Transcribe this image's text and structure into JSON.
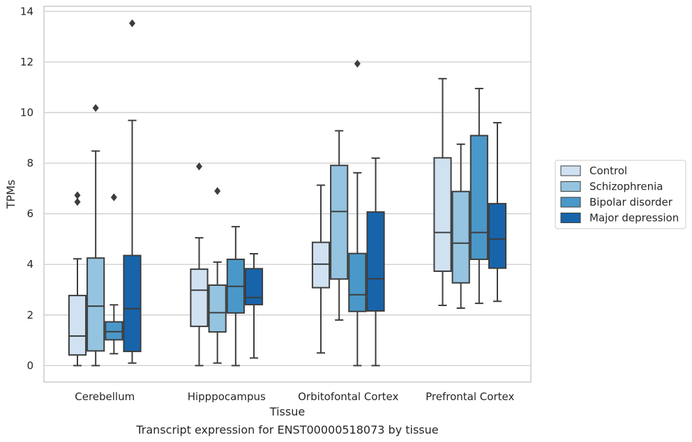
{
  "chart_data": {
    "type": "boxplot",
    "title": "Transcript expression for ENST00000518073 by tissue",
    "xlabel": "Tissue",
    "ylabel": "TPMs",
    "ylim": [
      -0.65,
      14.2
    ],
    "yticks": [
      0,
      2,
      4,
      6,
      8,
      10,
      12,
      14
    ],
    "grid": true,
    "legend_position": "right",
    "categories": [
      "Cerebellum",
      "Hipppocampus",
      "Orbitofontal Cortex",
      "Prefrontal Cortex"
    ],
    "series": [
      {
        "name": "Control",
        "color": "#d0e1f2",
        "boxes": [
          {
            "whisker_low": 0.0,
            "q1": 0.42,
            "median": 1.17,
            "q3": 2.77,
            "whisker_high": 4.22,
            "outliers": [
              6.47,
              6.73
            ]
          },
          {
            "whisker_low": 0.0,
            "q1": 1.55,
            "median": 2.98,
            "q3": 3.81,
            "whisker_high": 5.05,
            "outliers": [
              7.87
            ]
          },
          {
            "whisker_low": 0.5,
            "q1": 3.08,
            "median": 4.01,
            "q3": 4.87,
            "whisker_high": 7.13,
            "outliers": []
          },
          {
            "whisker_low": 2.38,
            "q1": 3.73,
            "median": 5.26,
            "q3": 8.21,
            "whisker_high": 11.34,
            "outliers": []
          }
        ]
      },
      {
        "name": "Schizophrenia",
        "color": "#94c4df",
        "boxes": [
          {
            "whisker_low": 0.0,
            "q1": 0.58,
            "median": 2.35,
            "q3": 4.25,
            "whisker_high": 8.48,
            "outliers": [
              10.18
            ]
          },
          {
            "whisker_low": 0.1,
            "q1": 1.33,
            "median": 2.09,
            "q3": 3.18,
            "whisker_high": 4.09,
            "outliers": [
              6.9
            ]
          },
          {
            "whisker_low": 1.8,
            "q1": 3.42,
            "median": 6.09,
            "q3": 7.91,
            "whisker_high": 9.28,
            "outliers": []
          },
          {
            "whisker_low": 2.27,
            "q1": 3.27,
            "median": 4.84,
            "q3": 6.88,
            "whisker_high": 8.75,
            "outliers": []
          }
        ]
      },
      {
        "name": "Bipolar disorder",
        "color": "#4a98c9",
        "boxes": [
          {
            "whisker_low": 0.47,
            "q1": 1.02,
            "median": 1.34,
            "q3": 1.73,
            "whisker_high": 2.4,
            "outliers": [
              6.65
            ]
          },
          {
            "whisker_low": 0.0,
            "q1": 2.08,
            "median": 3.13,
            "q3": 4.2,
            "whisker_high": 5.49,
            "outliers": []
          },
          {
            "whisker_low": 0.0,
            "q1": 2.14,
            "median": 2.8,
            "q3": 4.43,
            "whisker_high": 7.62,
            "outliers": [
              11.93
            ]
          },
          {
            "whisker_low": 2.46,
            "q1": 4.2,
            "median": 5.26,
            "q3": 9.09,
            "whisker_high": 10.95,
            "outliers": []
          }
        ]
      },
      {
        "name": "Major depression",
        "color": "#1764ab",
        "boxes": [
          {
            "whisker_low": 0.1,
            "q1": 0.56,
            "median": 2.25,
            "q3": 4.35,
            "whisker_high": 9.69,
            "outliers": [
              13.53
            ]
          },
          {
            "whisker_low": 0.3,
            "q1": 2.41,
            "median": 2.69,
            "q3": 3.83,
            "whisker_high": 4.42,
            "outliers": []
          },
          {
            "whisker_low": 0.0,
            "q1": 2.16,
            "median": 3.43,
            "q3": 6.07,
            "whisker_high": 8.2,
            "outliers": []
          },
          {
            "whisker_low": 2.54,
            "q1": 3.85,
            "median": 5.0,
            "q3": 6.4,
            "whisker_high": 9.6,
            "outliers": []
          }
        ]
      }
    ]
  }
}
